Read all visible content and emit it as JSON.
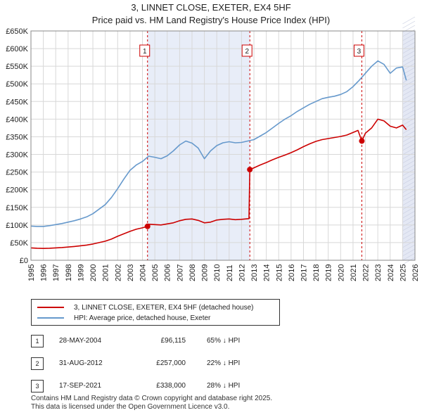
{
  "title_line1": "3, LINNET CLOSE, EXETER, EX4 5HF",
  "title_line2": "Price paid vs. HM Land Registry's House Price Index (HPI)",
  "chart_data": {
    "type": "line",
    "title": "3, LINNET CLOSE, EXETER, EX4 5HF",
    "subtitle": "Price paid vs. HM Land Registry's House Price Index (HPI)",
    "xlabel": "",
    "ylabel": "",
    "xlim": [
      1995,
      2026
    ],
    "ylim": [
      0,
      650000
    ],
    "grid": true,
    "x_ticks": [
      1995,
      1996,
      1997,
      1998,
      1999,
      2000,
      2001,
      2002,
      2003,
      2004,
      2005,
      2006,
      2007,
      2008,
      2009,
      2010,
      2011,
      2012,
      2013,
      2014,
      2015,
      2016,
      2017,
      2018,
      2019,
      2020,
      2021,
      2022,
      2023,
      2024,
      2025,
      2026
    ],
    "y_ticks": [
      0,
      50000,
      100000,
      150000,
      200000,
      250000,
      300000,
      350000,
      400000,
      450000,
      500000,
      550000,
      600000,
      650000
    ],
    "y_tick_labels": [
      "£0",
      "£50K",
      "£100K",
      "£150K",
      "£200K",
      "£250K",
      "£300K",
      "£350K",
      "£400K",
      "£450K",
      "£500K",
      "£550K",
      "£600K",
      "£650K"
    ],
    "series": [
      {
        "name": "3, LINNET CLOSE, EXETER, EX4 5HF (detached house)",
        "color": "#cc0000",
        "x": [
          1995.0,
          1995.5,
          1996.0,
          1996.5,
          1997.0,
          1997.5,
          1998.0,
          1998.5,
          1999.0,
          1999.5,
          2000.0,
          2000.5,
          2001.0,
          2001.5,
          2002.0,
          2002.5,
          2003.0,
          2003.5,
          2004.0,
          2004.41,
          2004.5,
          2005.0,
          2005.5,
          2006.0,
          2006.5,
          2007.0,
          2007.5,
          2008.0,
          2008.5,
          2009.0,
          2009.5,
          2010.0,
          2010.5,
          2011.0,
          2011.5,
          2012.0,
          2012.6,
          2012.67,
          2013.0,
          2013.5,
          2014.0,
          2014.5,
          2015.0,
          2015.5,
          2016.0,
          2016.5,
          2017.0,
          2017.5,
          2018.0,
          2018.5,
          2019.0,
          2019.5,
          2020.0,
          2020.5,
          2021.0,
          2021.4,
          2021.71,
          2022.0,
          2022.5,
          2023.0,
          2023.5,
          2024.0,
          2024.5,
          2025.0,
          2025.3
        ],
        "y": [
          35000,
          34000,
          33500,
          34000,
          35000,
          36000,
          37500,
          39000,
          41000,
          43000,
          46000,
          50000,
          54000,
          60000,
          68000,
          75000,
          82000,
          88000,
          92000,
          96115,
          102000,
          101000,
          100000,
          103000,
          106000,
          112000,
          116000,
          117000,
          113000,
          106000,
          108000,
          114000,
          116000,
          117000,
          115000,
          116000,
          118000,
          257000,
          262000,
          270000,
          277000,
          285000,
          292000,
          298000,
          305000,
          313000,
          322000,
          330000,
          337000,
          342000,
          345000,
          348000,
          351000,
          355000,
          362000,
          368000,
          338000,
          360000,
          375000,
          400000,
          395000,
          380000,
          375000,
          383000,
          370000
        ]
      },
      {
        "name": "HPI: Average price, detached house, Exeter",
        "color": "#6699cc",
        "x": [
          1995.0,
          1995.5,
          1996.0,
          1996.5,
          1997.0,
          1997.5,
          1998.0,
          1998.5,
          1999.0,
          1999.5,
          2000.0,
          2000.5,
          2001.0,
          2001.5,
          2002.0,
          2002.5,
          2003.0,
          2003.5,
          2004.0,
          2004.5,
          2005.0,
          2005.5,
          2006.0,
          2006.5,
          2007.0,
          2007.5,
          2008.0,
          2008.5,
          2009.0,
          2009.5,
          2010.0,
          2010.5,
          2011.0,
          2011.5,
          2012.0,
          2012.5,
          2013.0,
          2013.5,
          2014.0,
          2014.5,
          2015.0,
          2015.5,
          2016.0,
          2016.5,
          2017.0,
          2017.5,
          2018.0,
          2018.5,
          2019.0,
          2019.5,
          2020.0,
          2020.5,
          2021.0,
          2021.5,
          2022.0,
          2022.5,
          2023.0,
          2023.5,
          2024.0,
          2024.5,
          2025.0,
          2025.3
        ],
        "y": [
          97000,
          96000,
          96000,
          98000,
          101000,
          104000,
          108000,
          112000,
          117000,
          123000,
          132000,
          145000,
          158000,
          178000,
          203000,
          230000,
          255000,
          270000,
          280000,
          295000,
          292000,
          288000,
          296000,
          310000,
          327000,
          338000,
          332000,
          318000,
          288000,
          310000,
          325000,
          333000,
          336000,
          333000,
          334000,
          338000,
          342000,
          352000,
          362000,
          375000,
          388000,
          400000,
          410000,
          422000,
          432000,
          442000,
          450000,
          458000,
          462000,
          465000,
          470000,
          478000,
          492000,
          510000,
          530000,
          550000,
          565000,
          555000,
          530000,
          545000,
          548000,
          510000
        ]
      }
    ],
    "sales": [
      {
        "label": "1",
        "x": 2004.41,
        "y": 96115
      },
      {
        "label": "2",
        "x": 2012.67,
        "y": 257000
      },
      {
        "label": "3",
        "x": 2021.71,
        "y": 338000
      }
    ],
    "shaded_ranges": [
      [
        2004.41,
        2012.67
      ],
      [
        2025.0,
        2026.0
      ]
    ]
  },
  "legend": {
    "property": "3, LINNET CLOSE, EXETER, EX4 5HF (detached house)",
    "hpi": "HPI: Average price, detached house, Exeter"
  },
  "transactions": [
    {
      "num": "1",
      "date": "28-MAY-2004",
      "price": "£96,115",
      "hpi": "65% ↓ HPI"
    },
    {
      "num": "2",
      "date": "31-AUG-2012",
      "price": "£257,000",
      "hpi": "22% ↓ HPI"
    },
    {
      "num": "3",
      "date": "17-SEP-2021",
      "price": "£338,000",
      "hpi": "28% ↓ HPI"
    }
  ],
  "footer": {
    "line1": "Contains HM Land Registry data © Crown copyright and database right 2025.",
    "line2": "This data is licensed under the Open Government Licence v3.0."
  }
}
